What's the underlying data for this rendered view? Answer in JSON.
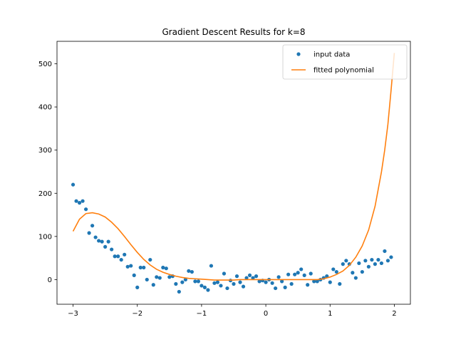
{
  "chart_data": {
    "type": "scatter",
    "title": "Gradient Descent Results for k=8",
    "xlabel": "",
    "ylabel": "",
    "xlim": [
      -3.25,
      2.25
    ],
    "ylim": [
      -57,
      552
    ],
    "xticks": [
      -3,
      -2,
      -1,
      0,
      1,
      2
    ],
    "yticks": [
      0,
      100,
      200,
      300,
      400,
      500
    ],
    "grid": false,
    "legend_position": "top-right",
    "series": [
      {
        "name": "input data",
        "kind": "scatter",
        "color": "#1f77b4",
        "points": [
          [
            -3.0,
            220
          ],
          [
            -2.95,
            182
          ],
          [
            -2.9,
            178
          ],
          [
            -2.85,
            182
          ],
          [
            -2.8,
            163
          ],
          [
            -2.75,
            108
          ],
          [
            -2.7,
            125
          ],
          [
            -2.65,
            98
          ],
          [
            -2.6,
            90
          ],
          [
            -2.55,
            88
          ],
          [
            -2.5,
            76
          ],
          [
            -2.45,
            88
          ],
          [
            -2.4,
            70
          ],
          [
            -2.35,
            54
          ],
          [
            -2.3,
            54
          ],
          [
            -2.25,
            46
          ],
          [
            -2.2,
            58
          ],
          [
            -2.15,
            30
          ],
          [
            -2.1,
            32
          ],
          [
            -2.05,
            10
          ],
          [
            -2.0,
            -18
          ],
          [
            -1.95,
            28
          ],
          [
            -1.9,
            28
          ],
          [
            -1.85,
            0
          ],
          [
            -1.8,
            46
          ],
          [
            -1.75,
            -12
          ],
          [
            -1.7,
            6
          ],
          [
            -1.65,
            4
          ],
          [
            -1.6,
            28
          ],
          [
            -1.55,
            26
          ],
          [
            -1.5,
            6
          ],
          [
            -1.45,
            8
          ],
          [
            -1.4,
            -10
          ],
          [
            -1.35,
            -28
          ],
          [
            -1.3,
            -6
          ],
          [
            -1.25,
            0
          ],
          [
            -1.2,
            20
          ],
          [
            -1.15,
            18
          ],
          [
            -1.1,
            -4
          ],
          [
            -1.05,
            -4
          ],
          [
            -1.0,
            -14
          ],
          [
            -0.95,
            -18
          ],
          [
            -0.9,
            -24
          ],
          [
            -0.85,
            32
          ],
          [
            -0.8,
            -8
          ],
          [
            -0.75,
            -6
          ],
          [
            -0.7,
            -14
          ],
          [
            -0.65,
            14
          ],
          [
            -0.6,
            -20
          ],
          [
            -0.55,
            -2
          ],
          [
            -0.5,
            -10
          ],
          [
            -0.45,
            8
          ],
          [
            -0.4,
            -6
          ],
          [
            -0.35,
            -16
          ],
          [
            -0.3,
            4
          ],
          [
            -0.25,
            10
          ],
          [
            -0.2,
            4
          ],
          [
            -0.15,
            8
          ],
          [
            -0.1,
            -4
          ],
          [
            -0.05,
            -2
          ],
          [
            0.0,
            -6
          ],
          [
            0.05,
            0
          ],
          [
            0.1,
            -8
          ],
          [
            0.15,
            -20
          ],
          [
            0.2,
            6
          ],
          [
            0.25,
            -4
          ],
          [
            0.3,
            -18
          ],
          [
            0.35,
            12
          ],
          [
            0.4,
            -10
          ],
          [
            0.45,
            12
          ],
          [
            0.5,
            16
          ],
          [
            0.55,
            24
          ],
          [
            0.6,
            10
          ],
          [
            0.65,
            -12
          ],
          [
            0.7,
            14
          ],
          [
            0.75,
            -4
          ],
          [
            0.8,
            -4
          ],
          [
            0.85,
            0
          ],
          [
            0.9,
            4
          ],
          [
            0.95,
            8
          ],
          [
            1.0,
            -6
          ],
          [
            1.05,
            24
          ],
          [
            1.1,
            18
          ],
          [
            1.15,
            -10
          ],
          [
            1.2,
            36
          ],
          [
            1.25,
            44
          ],
          [
            1.3,
            36
          ],
          [
            1.35,
            16
          ],
          [
            1.4,
            4
          ],
          [
            1.45,
            38
          ],
          [
            1.5,
            18
          ],
          [
            1.55,
            44
          ],
          [
            1.6,
            30
          ],
          [
            1.65,
            46
          ],
          [
            1.7,
            36
          ],
          [
            1.75,
            46
          ],
          [
            1.8,
            38
          ],
          [
            1.85,
            66
          ],
          [
            1.9,
            44
          ],
          [
            1.95,
            52
          ]
        ]
      },
      {
        "name": "fitted polynomial",
        "kind": "line",
        "color": "#ff7f0e",
        "points": [
          [
            -3.0,
            112
          ],
          [
            -2.9,
            140
          ],
          [
            -2.8,
            153
          ],
          [
            -2.7,
            155
          ],
          [
            -2.6,
            152
          ],
          [
            -2.5,
            145
          ],
          [
            -2.4,
            133
          ],
          [
            -2.3,
            118
          ],
          [
            -2.2,
            100
          ],
          [
            -2.1,
            81
          ],
          [
            -2.0,
            63
          ],
          [
            -1.9,
            47
          ],
          [
            -1.8,
            34
          ],
          [
            -1.7,
            24
          ],
          [
            -1.6,
            17
          ],
          [
            -1.5,
            12
          ],
          [
            -1.4,
            8
          ],
          [
            -1.3,
            5
          ],
          [
            -1.2,
            3
          ],
          [
            -1.1,
            2
          ],
          [
            -1.0,
            1
          ],
          [
            -0.9,
            0
          ],
          [
            -0.8,
            -1
          ],
          [
            -0.7,
            -1
          ],
          [
            -0.6,
            -1
          ],
          [
            -0.5,
            -1
          ],
          [
            -0.4,
            0
          ],
          [
            -0.3,
            0
          ],
          [
            -0.2,
            0
          ],
          [
            -0.1,
            0
          ],
          [
            0.0,
            0
          ],
          [
            0.1,
            0
          ],
          [
            0.2,
            0
          ],
          [
            0.3,
            0
          ],
          [
            0.4,
            0
          ],
          [
            0.5,
            0
          ],
          [
            0.6,
            0
          ],
          [
            0.7,
            0
          ],
          [
            0.8,
            0
          ],
          [
            0.9,
            2
          ],
          [
            1.0,
            6
          ],
          [
            1.1,
            12
          ],
          [
            1.2,
            20
          ],
          [
            1.3,
            33
          ],
          [
            1.4,
            52
          ],
          [
            1.5,
            78
          ],
          [
            1.6,
            115
          ],
          [
            1.7,
            170
          ],
          [
            1.8,
            250
          ],
          [
            1.85,
            300
          ],
          [
            1.9,
            360
          ],
          [
            1.95,
            440
          ],
          [
            2.0,
            525
          ]
        ]
      }
    ]
  }
}
